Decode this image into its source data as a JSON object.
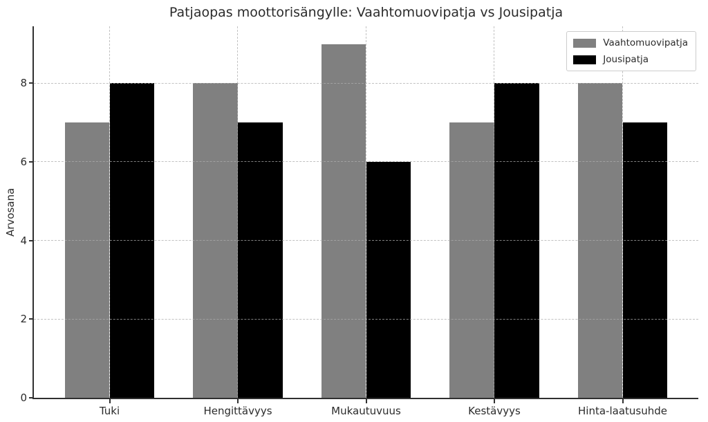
{
  "chart_data": {
    "type": "bar",
    "title": "Patjaopas moottorisängylle: Vaahtomuovipatja vs Jousipatja",
    "xlabel": "",
    "ylabel": "Arvosana",
    "categories": [
      "Tuki",
      "Hengittävyys",
      "Mukautuvuus",
      "Kestävyys",
      "Hinta-laatusuhde"
    ],
    "series": [
      {
        "name": "Vaahtomuovipatja",
        "color": "#808080",
        "values": [
          7,
          8,
          9,
          7,
          8
        ]
      },
      {
        "name": "Jousipatja",
        "color": "#000000",
        "values": [
          8,
          7,
          6,
          8,
          7
        ]
      }
    ],
    "ylim": [
      0,
      9.45
    ],
    "yticks": [
      0,
      2,
      4,
      6,
      8
    ],
    "grid": true,
    "grid_style": "dashed",
    "legend_position": "top-right",
    "background_color": "#ffffff",
    "text_color": "#2b2b2b",
    "grid_color": "#acacac"
  }
}
